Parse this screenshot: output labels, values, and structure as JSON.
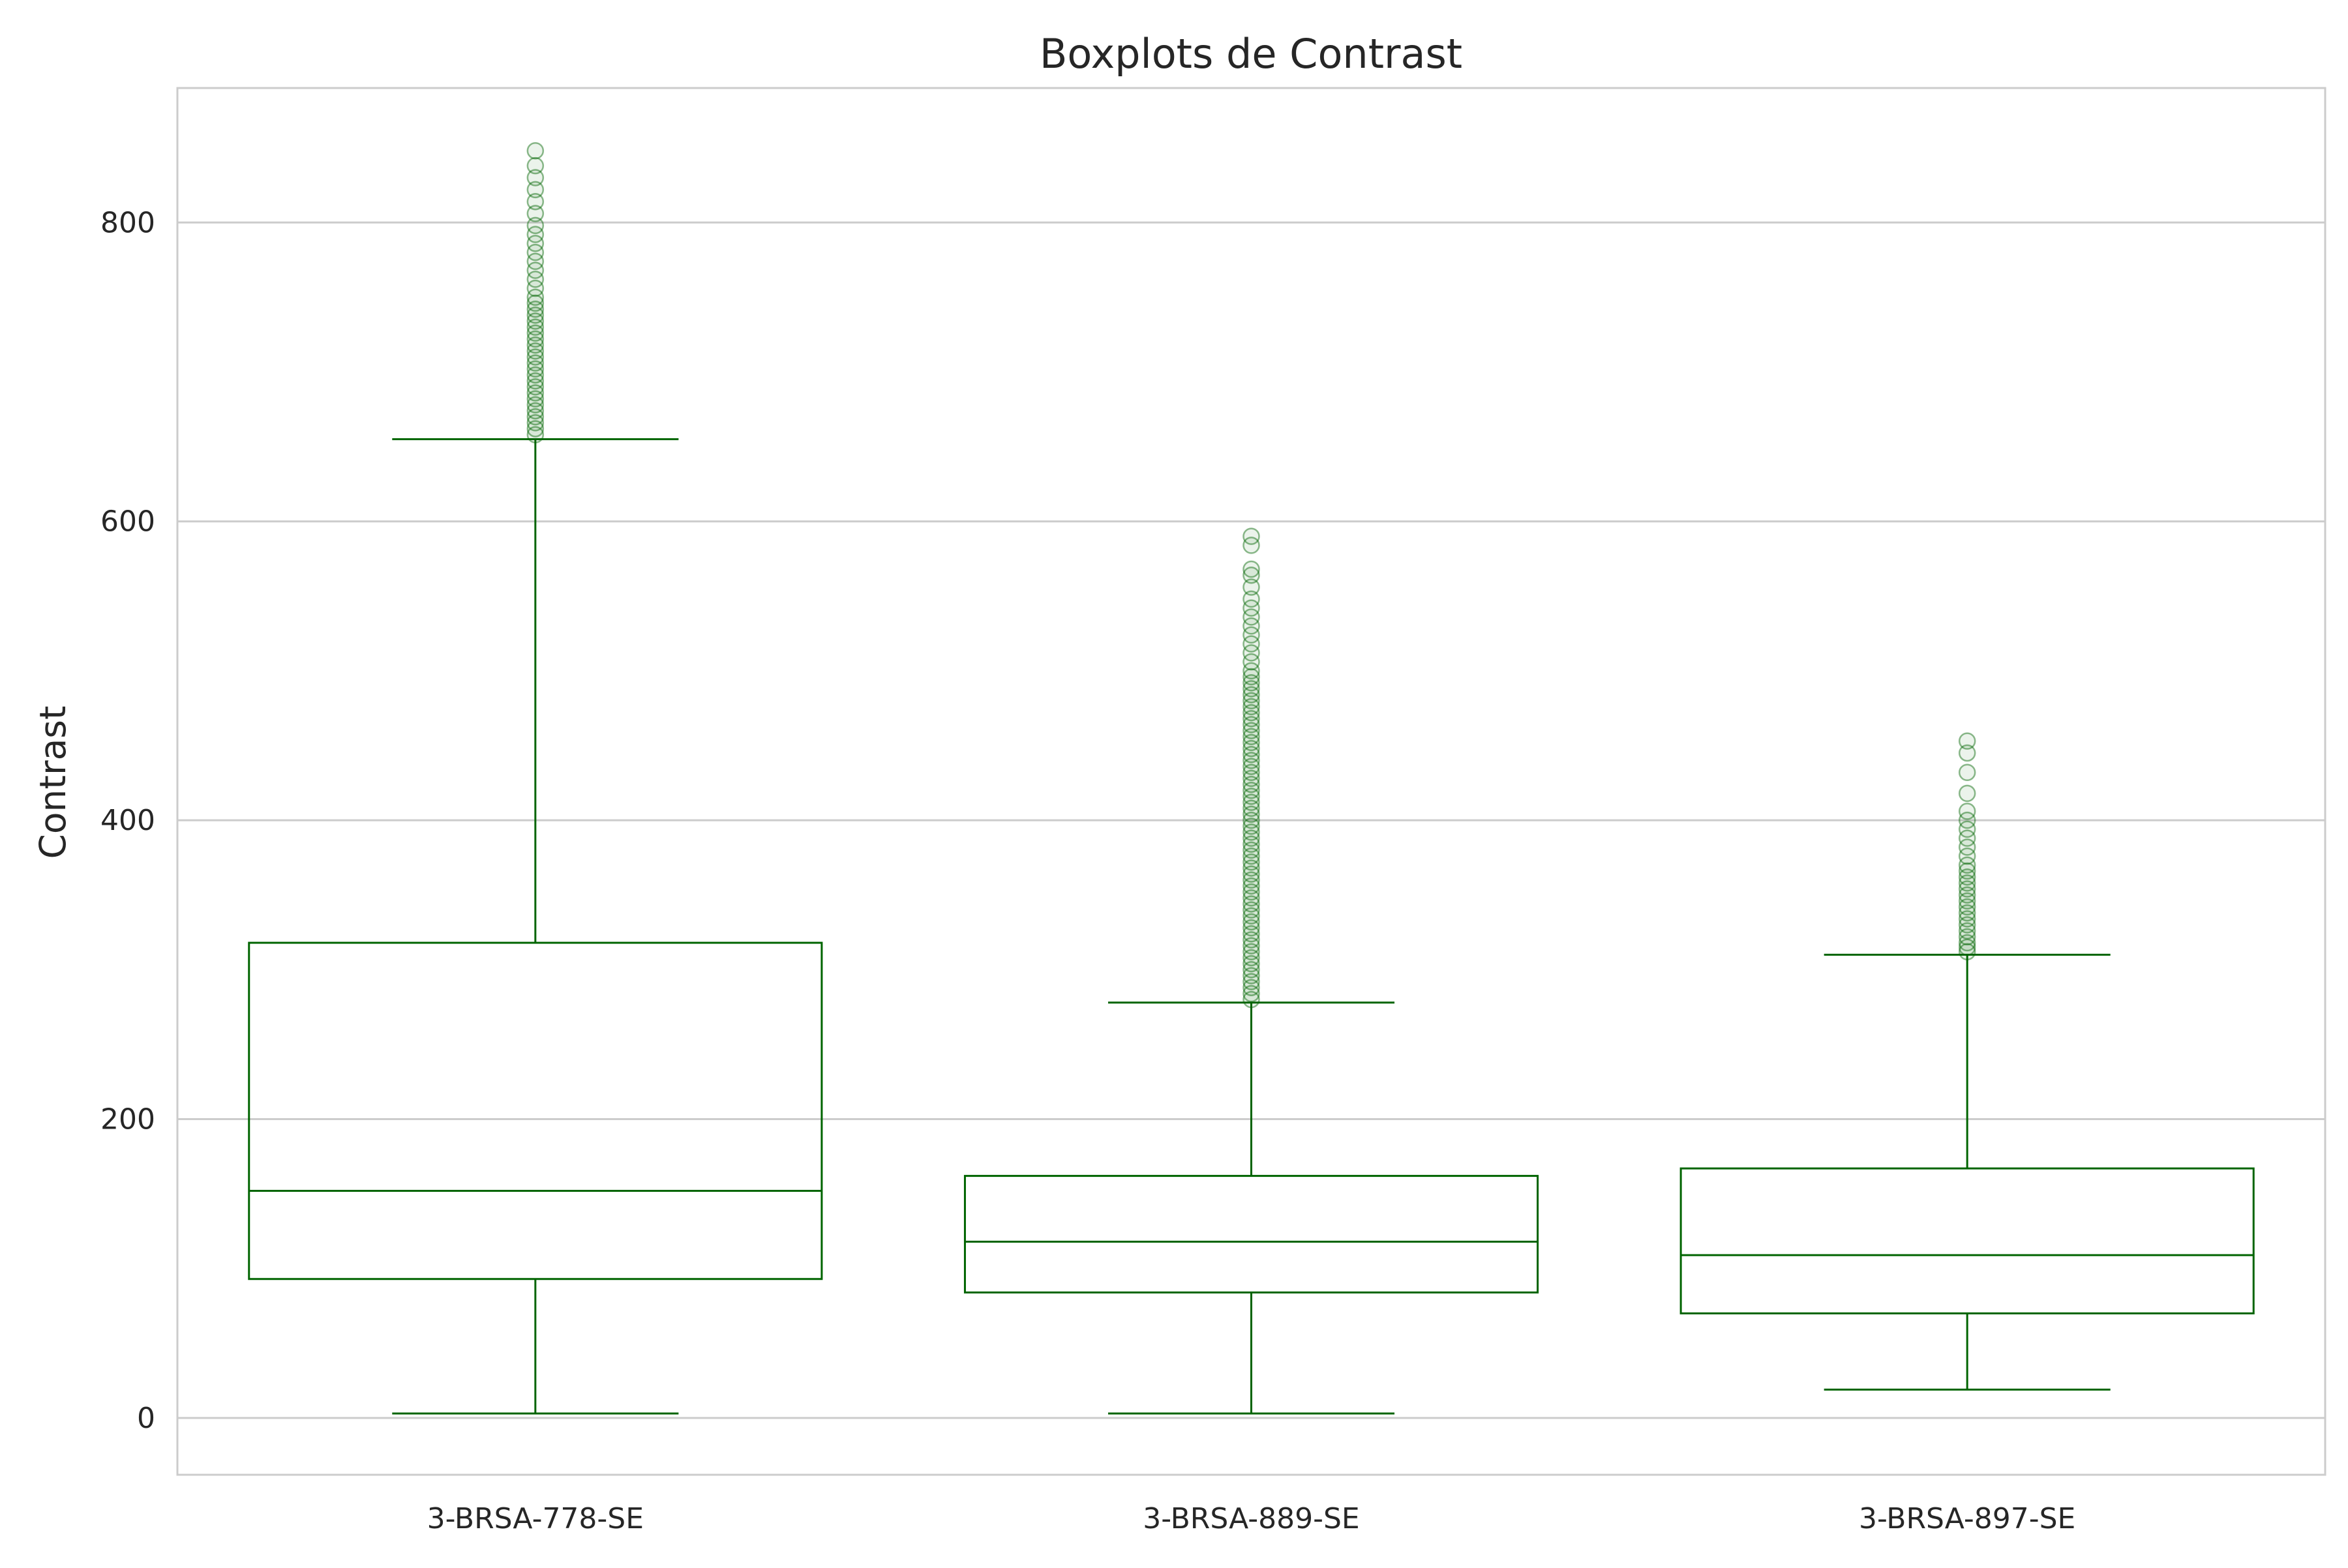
{
  "chart_data": {
    "type": "boxplot",
    "title": "Boxplots de Contrast",
    "xlabel": "",
    "ylabel": "Contrast",
    "ylim": [
      -38,
      890
    ],
    "yticks": [
      0,
      200,
      400,
      600,
      800
    ],
    "grid": "horizontal",
    "colors": {
      "box": "#006400",
      "grid": "#cccccc",
      "spine": "#cccccc"
    },
    "categories": [
      "3-BRSA-778-SE",
      "3-BRSA-889-SE",
      "3-BRSA-897-SE"
    ],
    "boxes": [
      {
        "name": "3-BRSA-778-SE",
        "whisker_low": 3,
        "q1": 93,
        "median": 152,
        "q3": 318,
        "whisker_high": 655,
        "outliers": [
          658,
          662,
          666,
          670,
          674,
          678,
          682,
          686,
          690,
          694,
          698,
          702,
          706,
          710,
          714,
          718,
          722,
          726,
          730,
          734,
          738,
          742,
          746,
          750,
          756,
          762,
          768,
          774,
          780,
          786,
          792,
          798,
          806,
          814,
          822,
          830,
          838,
          848
        ]
      },
      {
        "name": "3-BRSA-889-SE",
        "whisker_low": 3,
        "q1": 84,
        "median": 118,
        "q3": 162,
        "whisker_high": 278,
        "outliers": [
          280,
          284,
          288,
          292,
          296,
          300,
          304,
          308,
          312,
          316,
          320,
          324,
          328,
          332,
          336,
          340,
          344,
          348,
          352,
          356,
          360,
          364,
          368,
          372,
          376,
          380,
          384,
          388,
          392,
          396,
          400,
          404,
          408,
          412,
          416,
          420,
          424,
          428,
          432,
          436,
          440,
          444,
          448,
          452,
          456,
          460,
          464,
          468,
          472,
          476,
          480,
          484,
          488,
          492,
          496,
          500,
          506,
          512,
          518,
          524,
          530,
          536,
          542,
          548,
          556,
          564,
          568,
          584,
          590
        ]
      },
      {
        "name": "3-BRSA-897-SE",
        "whisker_low": 19,
        "q1": 70,
        "median": 109,
        "q3": 167,
        "whisker_high": 310,
        "outliers": [
          312,
          315,
          318,
          322,
          326,
          330,
          334,
          338,
          342,
          346,
          350,
          354,
          358,
          362,
          366,
          370,
          376,
          382,
          388,
          394,
          400,
          406,
          418,
          432,
          445,
          453
        ]
      }
    ]
  }
}
